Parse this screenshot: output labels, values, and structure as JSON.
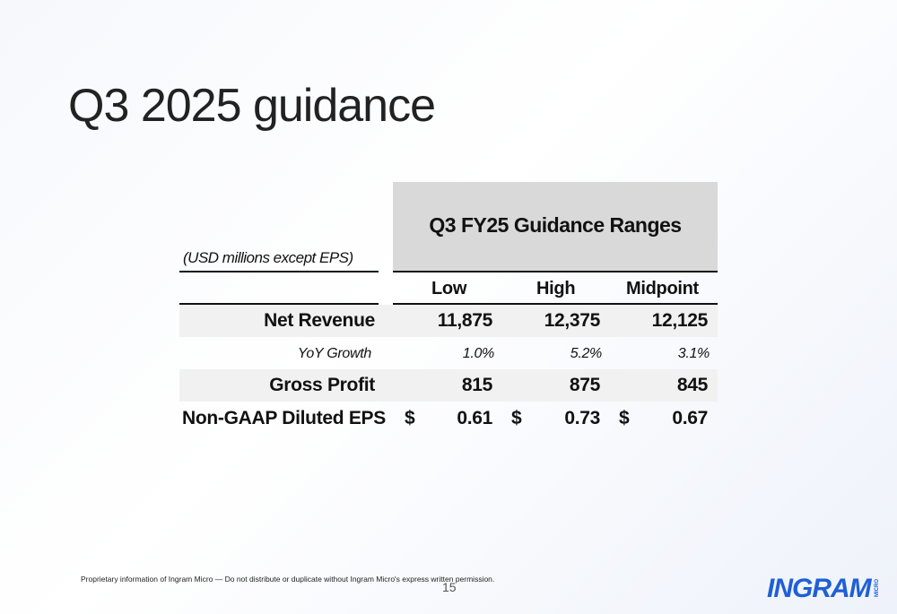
{
  "slide": {
    "title": "Q3 2025 guidance",
    "page_number": "15",
    "footer_text": "Proprietary information of Ingram Micro — Do not distribute or duplicate without Ingram Micro's express written permission."
  },
  "table": {
    "header_title": "Q3 FY25 Guidance Ranges",
    "units_note": "(USD millions except EPS)",
    "columns": [
      "Low",
      "High",
      "Midpoint"
    ],
    "rows": [
      {
        "label": "Net Revenue",
        "values": [
          "11,875",
          "12,375",
          "12,125"
        ]
      },
      {
        "label": "YoY Growth",
        "values": [
          "1.0%",
          "5.2%",
          "3.1%"
        ]
      },
      {
        "label": "Gross Profit",
        "values": [
          "815",
          "875",
          "845"
        ]
      },
      {
        "label": "Non-GAAP Diluted EPS",
        "currency": "$",
        "values": [
          "0.61",
          "0.73",
          "0.67"
        ]
      }
    ]
  },
  "logo": {
    "text": "INGRAM",
    "subtext": "MICRO",
    "color": "#1f5fd6"
  },
  "colors": {
    "header_fill": "#d9d9d9",
    "row_shade": "#f1f1f1",
    "brand_blue": "#1f5fd6"
  }
}
